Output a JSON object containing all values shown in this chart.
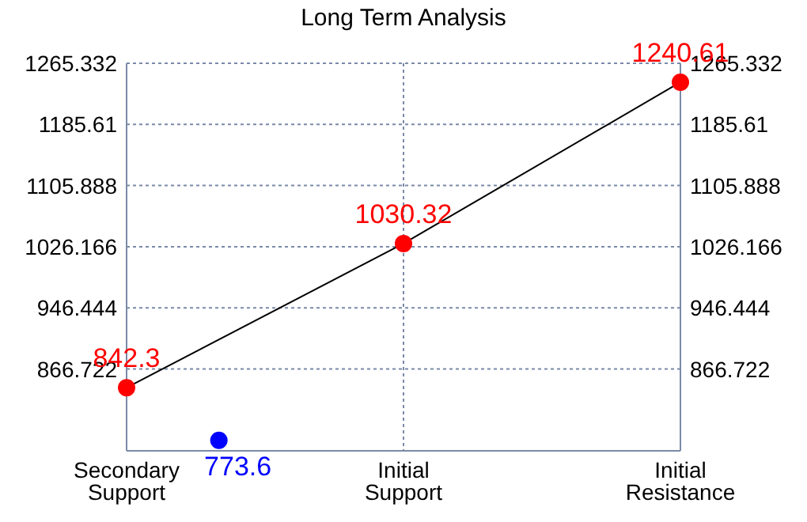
{
  "chart_data": {
    "type": "line",
    "title": "Long Term Analysis",
    "categories": [
      "Secondary Support",
      null,
      null,
      "Initial Support",
      null,
      null,
      "Initial Resistance"
    ],
    "ylim": [
      760,
      1265.332
    ],
    "yticks": [
      866.722,
      946.444,
      1026.166,
      1105.888,
      1185.61,
      1265.332
    ],
    "y2lim": [
      760,
      1265.332
    ],
    "y2ticks": [
      866.722,
      946.444,
      1026.166,
      1105.888,
      1185.61,
      1265.332
    ],
    "grid": true,
    "data_labels": true,
    "series": [
      {
        "color": "#000000",
        "marker": "none",
        "x": [
          "Secondary Support",
          "Initial Support",
          "Initial Resistance"
        ],
        "values": [
          842.3,
          1030.32,
          1240.61
        ],
        "value_labels": [
          null,
          null,
          null
        ]
      },
      {
        "type": "scatter",
        "color": "#ff0000",
        "marker": "circle",
        "x": [
          "Secondary Support",
          "Initial Support",
          "Initial Resistance"
        ],
        "values": [
          842.3,
          1030.32,
          1240.61
        ]
      },
      {
        "type": "scatter",
        "color": "#0000ff",
        "marker": "circle",
        "values": [
          null,
          773.6,
          null,
          null,
          null,
          null,
          null
        ]
      }
    ]
  }
}
